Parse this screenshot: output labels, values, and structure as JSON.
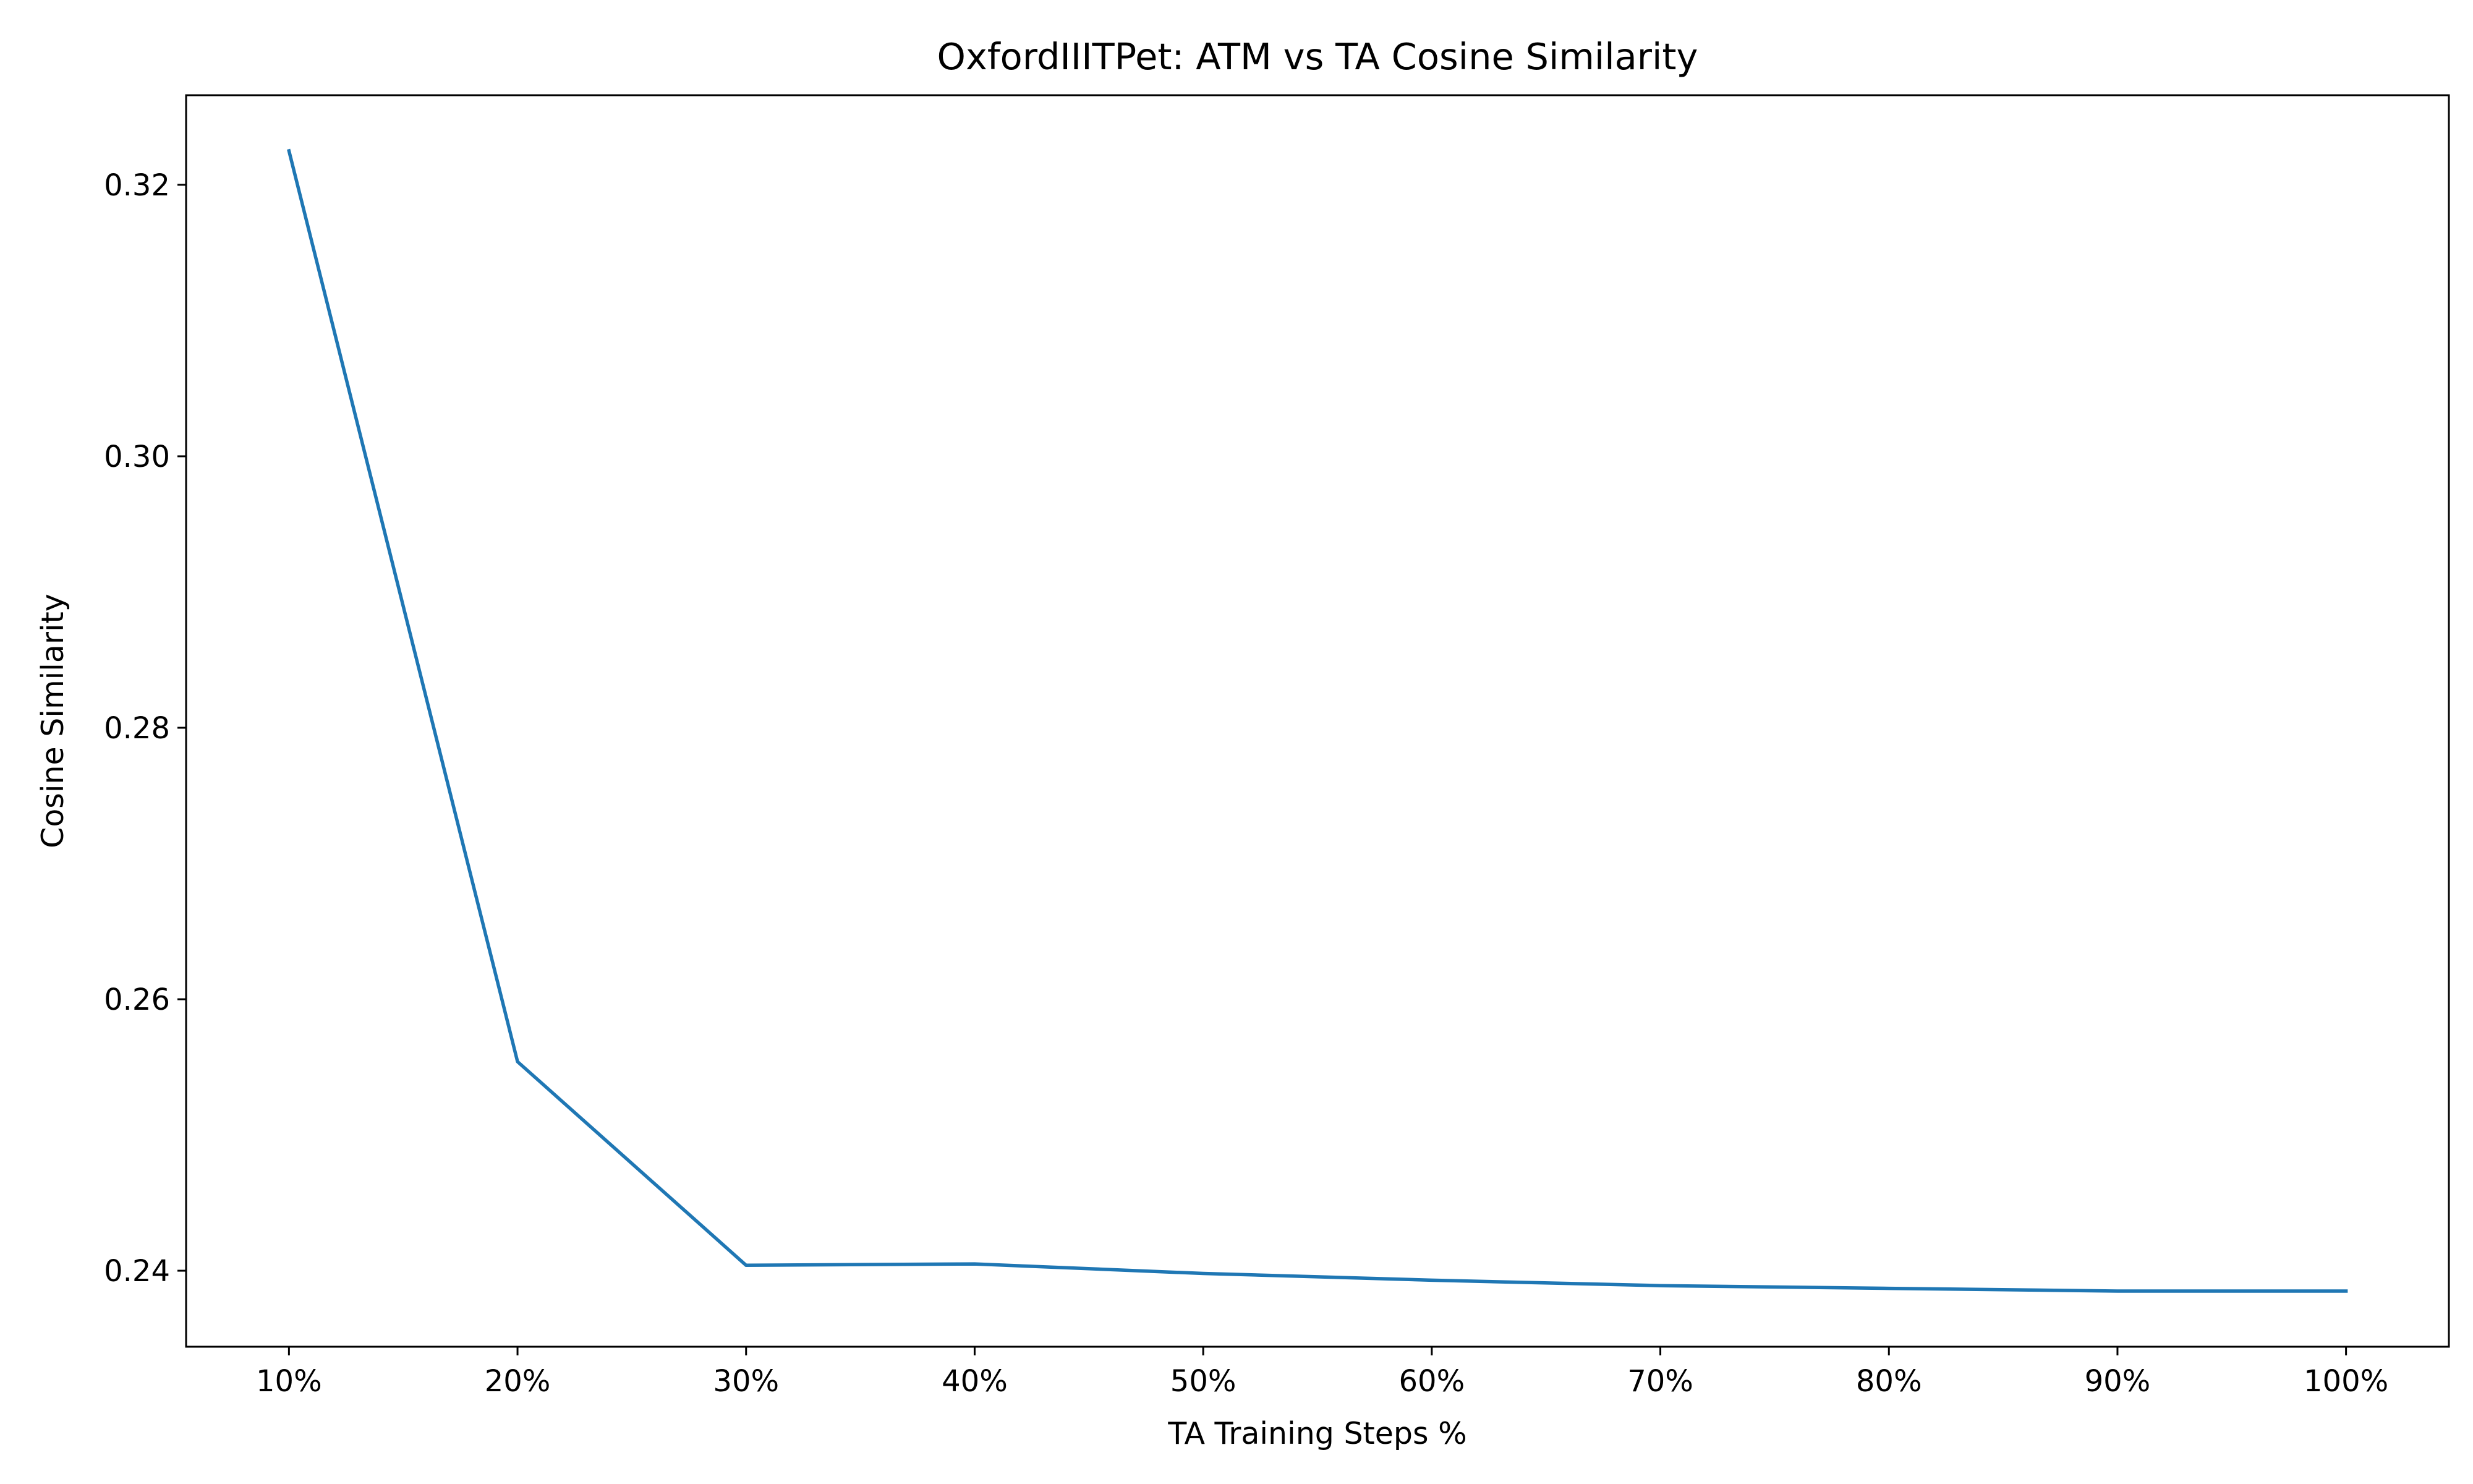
{
  "chart_data": {
    "type": "line",
    "title": "OxfordIIITPet: ATM vs TA Cosine Similarity",
    "xlabel": "TA Training Steps %",
    "ylabel": "Cosine Similarity",
    "categories": [
      "10%",
      "20%",
      "30%",
      "40%",
      "50%",
      "60%",
      "70%",
      "80%",
      "90%",
      "100%"
    ],
    "x": [
      10,
      20,
      30,
      40,
      50,
      60,
      70,
      80,
      90,
      100
    ],
    "series": [
      {
        "color": "#1f77b4",
        "values": [
          0.3225,
          0.2554,
          0.2404,
          0.2405,
          0.2398,
          0.2393,
          0.2389,
          0.2387,
          0.2385,
          0.2385
        ]
      }
    ],
    "ylim": [
      0.2344,
      0.3266
    ],
    "xlim": [
      5.5,
      104.5
    ],
    "yticks": [
      0.24,
      0.26,
      0.28,
      0.3,
      0.32
    ],
    "ytick_labels": [
      "0.24",
      "0.26",
      "0.28",
      "0.30",
      "0.32"
    ],
    "grid": false,
    "legend": "none"
  }
}
